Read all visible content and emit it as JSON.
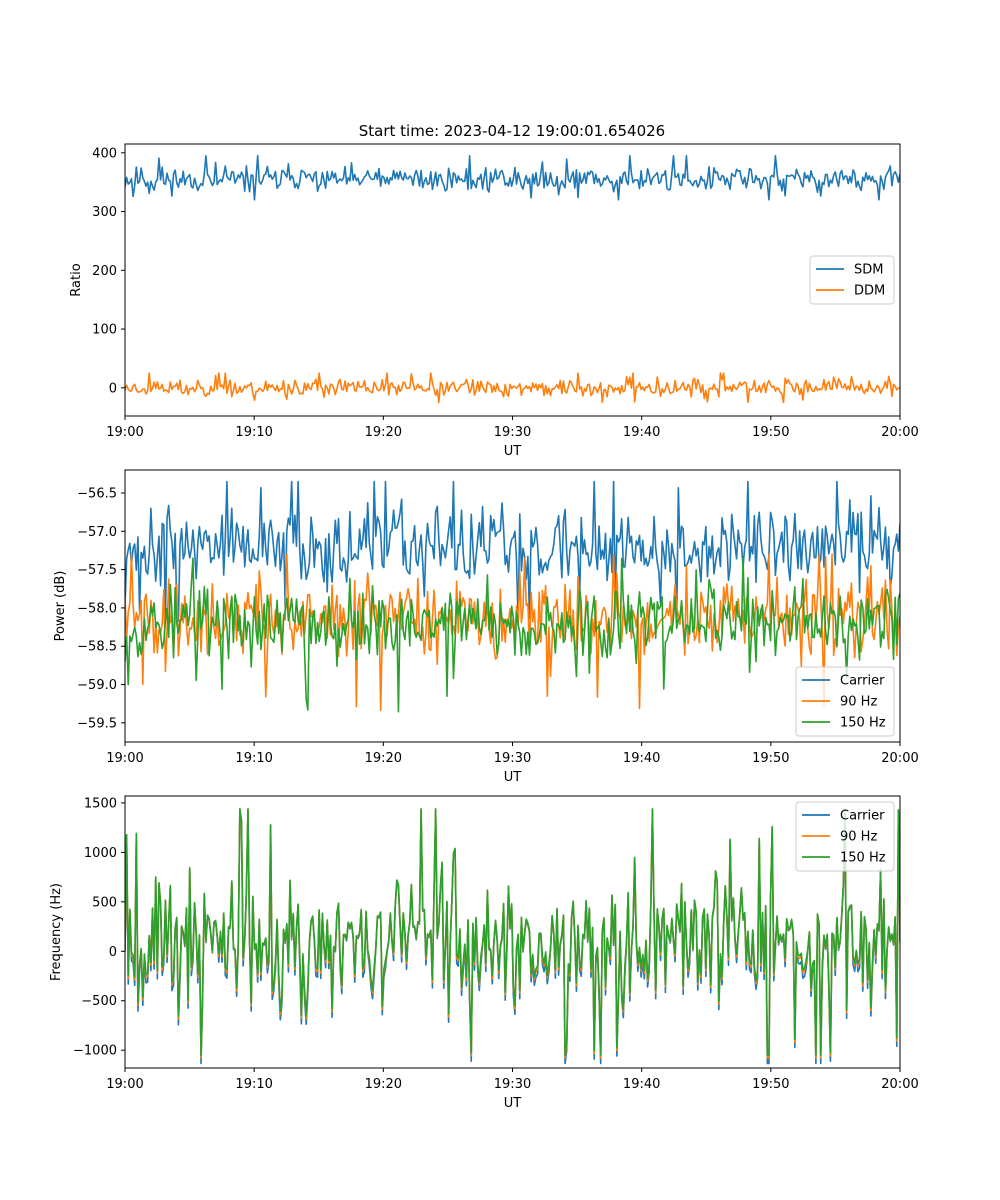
{
  "figure": {
    "title": "Start time: 2023-04-12 19:00:01.654026"
  },
  "colors": {
    "blue": "#1f77b4",
    "orange": "#ff7f0e",
    "green": "#2ca02c"
  },
  "chart_data": [
    {
      "type": "line",
      "xlabel": "UT",
      "ylabel": "Ratio",
      "xlim": [
        "19:00",
        "20:00"
      ],
      "ylim": [
        -48,
        415
      ],
      "xticks": [
        "19:00",
        "19:10",
        "19:20",
        "19:30",
        "19:40",
        "19:50",
        "20:00"
      ],
      "yticks": [
        "0",
        "100",
        "200",
        "300",
        "400"
      ],
      "ytick_values": [
        0,
        100,
        200,
        300,
        400
      ],
      "legend_position": "center-right",
      "series": [
        {
          "name": "SDM",
          "color": "#1f77b4",
          "mean": 355,
          "spread": 13,
          "min": 320,
          "max": 395,
          "seed": 11
        },
        {
          "name": "DDM",
          "color": "#ff7f0e",
          "mean": 0,
          "spread": 9,
          "min": -25,
          "max": 25,
          "seed": 23
        }
      ]
    },
    {
      "type": "line",
      "xlabel": "UT",
      "ylabel": "Power (dB)",
      "xlim": [
        "19:00",
        "20:00"
      ],
      "ylim": [
        -59.75,
        -56.2
      ],
      "xticks": [
        "19:00",
        "19:10",
        "19:20",
        "19:30",
        "19:40",
        "19:50",
        "20:00"
      ],
      "yticks": [
        "−56.5",
        "−57.0",
        "−57.5",
        "−58.0",
        "−58.5",
        "−59.0",
        "−59.5"
      ],
      "ytick_values": [
        -56.5,
        -57.0,
        -57.5,
        -58.0,
        -58.5,
        -59.0,
        -59.5
      ],
      "legend_position": "lower-right",
      "series": [
        {
          "name": "Carrier",
          "color": "#1f77b4",
          "mean": -57.2,
          "spread": 0.3,
          "min": -58.3,
          "max": -56.35,
          "seed": 37
        },
        {
          "name": "90 Hz",
          "color": "#ff7f0e",
          "mean": -58.15,
          "spread": 0.3,
          "min": -59.55,
          "max": -57.3,
          "seed": 41
        },
        {
          "name": "150 Hz",
          "color": "#2ca02c",
          "mean": -58.2,
          "spread": 0.3,
          "min": -59.5,
          "max": -57.35,
          "seed": 53
        }
      ]
    },
    {
      "type": "line",
      "xlabel": "UT",
      "ylabel": "Frequency (Hz)",
      "xlim": [
        "19:00",
        "20:00"
      ],
      "ylim": [
        -1180,
        1570
      ],
      "xticks": [
        "19:00",
        "19:10",
        "19:20",
        "19:30",
        "19:40",
        "19:50",
        "20:00"
      ],
      "yticks": [
        "1500",
        "1000",
        "500",
        "0",
        "−500",
        "−1000"
      ],
      "ytick_values": [
        1500,
        1000,
        500,
        0,
        -500,
        -1000
      ],
      "legend_position": "upper-right",
      "series": [
        {
          "name": "Carrier",
          "color": "#1f77b4",
          "offset": -60
        },
        {
          "name": "90 Hz",
          "color": "#ff7f0e",
          "offset": -20
        },
        {
          "name": "150 Hz",
          "color": "#2ca02c",
          "offset": 0
        }
      ],
      "base": {
        "mean": 120,
        "spread": 370,
        "min": -1050,
        "max": 1440,
        "seed": 67
      }
    }
  ]
}
